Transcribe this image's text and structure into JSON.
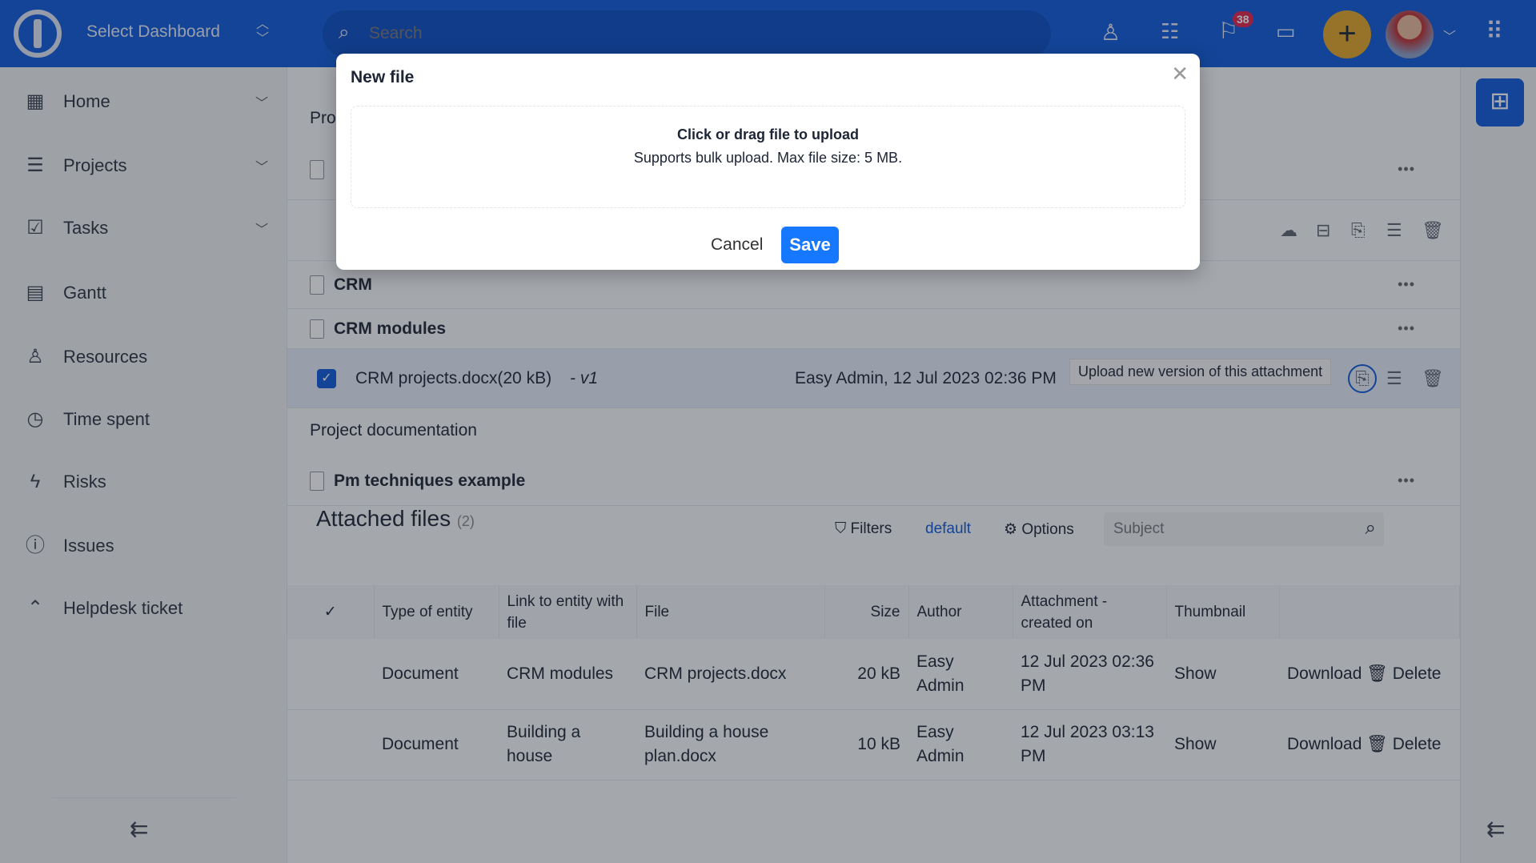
{
  "header": {
    "dashboard_select": "Select Dashboard",
    "search_placeholder": "Search",
    "notification_count": "38"
  },
  "sidebar": {
    "items": [
      {
        "label": "Home",
        "icon": "dashboard-icon",
        "expandable": true
      },
      {
        "label": "Projects",
        "icon": "projects-icon",
        "expandable": true
      },
      {
        "label": "Tasks",
        "icon": "tasks-icon",
        "expandable": true
      },
      {
        "label": "Gantt",
        "icon": "gantt-icon"
      },
      {
        "label": "Resources",
        "icon": "person-icon"
      },
      {
        "label": "Time spent",
        "icon": "clock-icon"
      },
      {
        "label": "Risks",
        "icon": "lightning-icon"
      },
      {
        "label": "Issues",
        "icon": "alert-icon"
      },
      {
        "label": "Helpdesk ticket",
        "icon": "ticket-icon"
      }
    ]
  },
  "main": {
    "section_partial": "Pro",
    "folders": [
      {
        "title": "CRM"
      },
      {
        "title": "CRM modules"
      }
    ],
    "selected_file": {
      "name": "CRM projects.docx(20 kB)",
      "version": "- v1",
      "author_date": "Easy Admin, 12 Jul 2023 02:36 PM",
      "checked": true
    },
    "tooltip": "Upload new version of this attachment",
    "section2": "Project documentation",
    "doc2": "Pm techniques example",
    "attached": {
      "title": "Attached files",
      "count": "(2)",
      "filters": "Filters",
      "default": "default",
      "options": "Options",
      "subject_placeholder": "Subject",
      "columns": [
        "Type of entity",
        "Link to entity with file",
        "File",
        "Size",
        "Author",
        "Attachment - created on",
        "Thumbnail"
      ],
      "rows": [
        {
          "type": "Document",
          "link": "CRM modules",
          "file": "CRM projects.docx",
          "size": "20 kB",
          "author": "Easy Admin",
          "created": "12 Jul 2023 02:36 PM",
          "thumb": "Show",
          "download": "Download",
          "delete": "Delete"
        },
        {
          "type": "Document",
          "link": "Building a house",
          "file": "Building a house plan.docx",
          "size": "10 kB",
          "author": "Easy Admin",
          "created": "12 Jul 2023 03:13 PM",
          "thumb": "Show",
          "download": "Download",
          "delete": "Delete"
        }
      ]
    }
  },
  "modal": {
    "title": "New file",
    "drop_title": "Click or drag file to upload",
    "drop_hint": "Supports bulk upload. Max file size: 5 MB.",
    "cancel": "Cancel",
    "save": "Save"
  },
  "colors": {
    "brand": "#0d5ad8",
    "accent_add": "#e0a526",
    "save": "#1677ff",
    "badge": "#e0234e"
  }
}
